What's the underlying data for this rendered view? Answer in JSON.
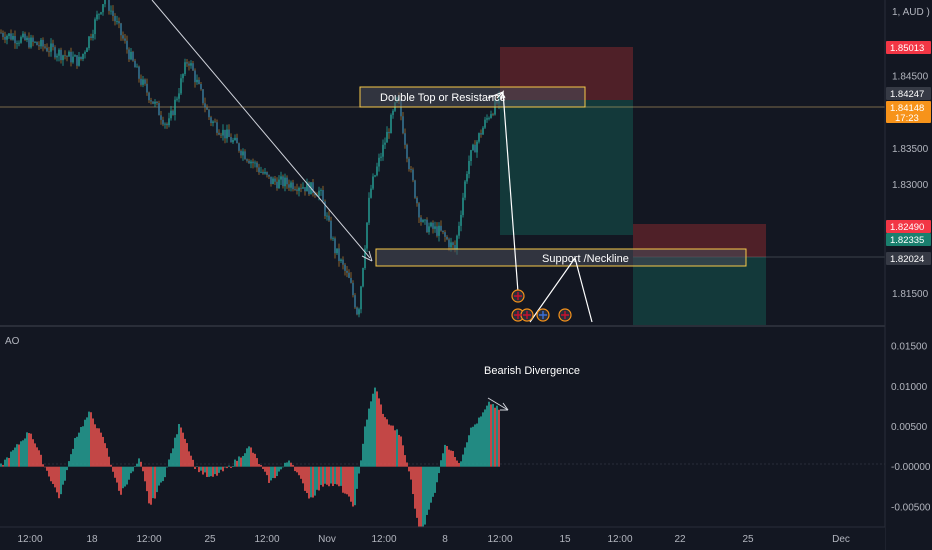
{
  "symbol_header": "1, AUD )",
  "indicator_label": "AO",
  "annotations": {
    "double_top": "Double Top or Resistance",
    "support": "Support /Neckline",
    "divergence": "Bearish Divergence"
  },
  "price_axis": {
    "ticks": [
      "1.84500",
      "1.83500",
      "1.83000",
      "1.81500"
    ],
    "tags": [
      {
        "name": "stop-loss-price-tag",
        "value": "1.85013",
        "color": "#f23645"
      },
      {
        "name": "resistance-price-tag",
        "value": "1.84247",
        "color": "#363a45"
      },
      {
        "name": "last-price-tag",
        "value": "1.84148",
        "sub": "17:23",
        "color": "#f7931a"
      },
      {
        "name": "second-stop-price-tag",
        "value": "1.82490",
        "color": "#f23645"
      },
      {
        "name": "entry-price-tag",
        "value": "1.82335",
        "color": "#1a7f6e"
      },
      {
        "name": "support-price-tag",
        "value": "1.82024",
        "color": "#363a45"
      }
    ]
  },
  "ao_axis": {
    "ticks": [
      "0.01500",
      "0.01000",
      "0.00500",
      "-0.00000",
      "-0.00500"
    ]
  },
  "time_axis": {
    "labels": [
      "12:00",
      "18",
      "12:00",
      "25",
      "12:00",
      "Nov",
      "12:00",
      "8",
      "12:00",
      "15",
      "12:00",
      "22",
      "25",
      "Dec"
    ]
  },
  "colors": {
    "background": "#131722",
    "bull": "#26a69a",
    "bear": "#ef5350",
    "wick_up": "#a8742e",
    "highlight_box": "#f7c948",
    "sl_zone": "#5a2229",
    "tp_zone": "#14403e",
    "trend_line": "#d1d4dc"
  },
  "chart_data": [
    {
      "type": "candlestick",
      "title": "",
      "ylim": [
        1.8105,
        1.8555
      ],
      "y_ticks": [
        1.845,
        1.835,
        1.83,
        1.815
      ],
      "key_levels": {
        "resistance": 1.84247,
        "support": 1.82024,
        "last": 1.84148,
        "stop": 1.85013
      },
      "path_points": [
        [
          0,
          1.851
        ],
        [
          45,
          1.849
        ],
        [
          80,
          1.847
        ],
        [
          105,
          1.856
        ],
        [
          140,
          1.8445
        ],
        [
          168,
          1.838
        ],
        [
          188,
          1.8475
        ],
        [
          210,
          1.839
        ],
        [
          240,
          1.835
        ],
        [
          270,
          1.8305
        ],
        [
          300,
          1.83
        ],
        [
          320,
          1.829
        ],
        [
          335,
          1.821
        ],
        [
          350,
          1.8165
        ],
        [
          358,
          1.812
        ],
        [
          370,
          1.829
        ],
        [
          385,
          1.836
        ],
        [
          398,
          1.842
        ],
        [
          410,
          1.832
        ],
        [
          422,
          1.8245
        ],
        [
          440,
          1.8235
        ],
        [
          455,
          1.821
        ],
        [
          468,
          1.833
        ],
        [
          480,
          1.837
        ],
        [
          490,
          1.84
        ],
        [
          500,
          1.8418
        ]
      ]
    },
    {
      "type": "bar",
      "title": "AO",
      "ylim": [
        -0.0075,
        0.0175
      ],
      "y_ticks": [
        0.015,
        0.01,
        0.005,
        0,
        -0.005
      ],
      "path_points": [
        [
          0,
          0.0
        ],
        [
          20,
          0.003
        ],
        [
          30,
          0.0045
        ],
        [
          45,
          0.0
        ],
        [
          60,
          -0.004
        ],
        [
          75,
          0.0035
        ],
        [
          90,
          0.0068
        ],
        [
          105,
          0.003
        ],
        [
          120,
          -0.0035
        ],
        [
          140,
          0.001
        ],
        [
          150,
          -0.005
        ],
        [
          165,
          -0.001
        ],
        [
          180,
          0.0055
        ],
        [
          195,
          0.0
        ],
        [
          210,
          -0.0015
        ],
        [
          230,
          0.0
        ],
        [
          250,
          0.0025
        ],
        [
          270,
          -0.002
        ],
        [
          290,
          0.001
        ],
        [
          310,
          -0.004
        ],
        [
          325,
          -0.002
        ],
        [
          340,
          -0.0025
        ],
        [
          355,
          -0.005
        ],
        [
          365,
          0.005
        ],
        [
          375,
          0.01
        ],
        [
          385,
          0.006
        ],
        [
          400,
          0.004
        ],
        [
          410,
          -0.001
        ],
        [
          420,
          -0.009
        ],
        [
          435,
          -0.003
        ],
        [
          445,
          0.003
        ],
        [
          460,
          0.0005
        ],
        [
          470,
          0.0045
        ],
        [
          480,
          0.006
        ],
        [
          490,
          0.008
        ],
        [
          500,
          0.007
        ]
      ]
    }
  ]
}
